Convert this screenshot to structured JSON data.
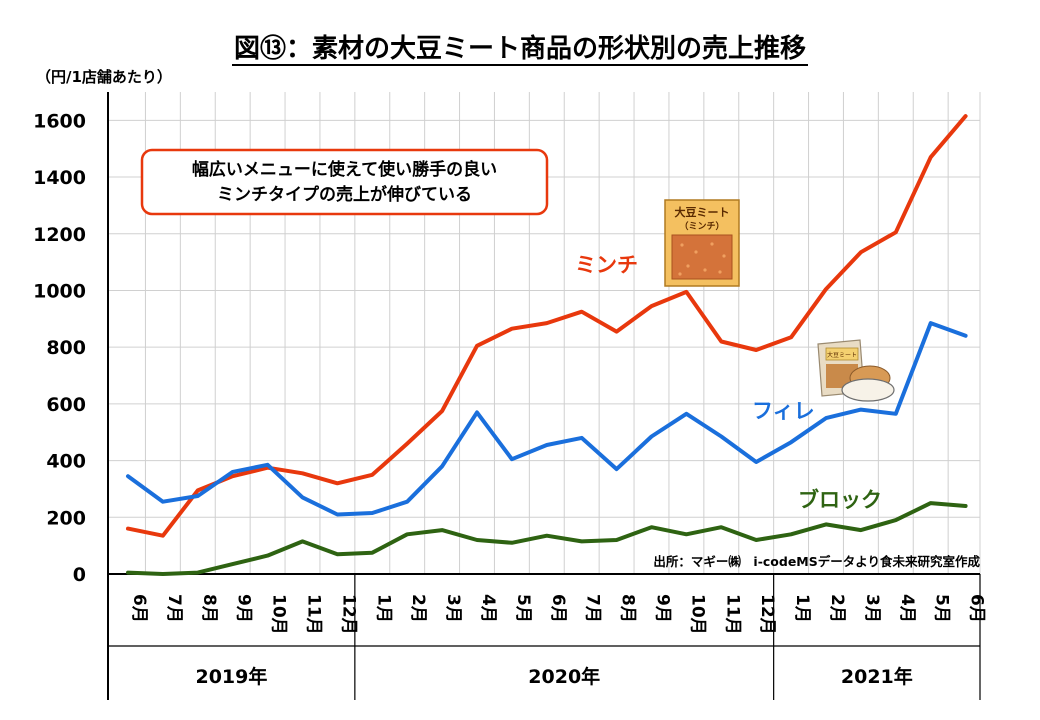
{
  "chart_data": {
    "type": "line",
    "title": "図⑬：素材の大豆ミート商品の形状別の売上推移",
    "ylabel": "（円/1店舗あたり）",
    "ylim": [
      0,
      1700
    ],
    "yticks": [
      "0",
      "200",
      "400",
      "600",
      "800",
      "1000",
      "1200",
      "1400",
      "1600"
    ],
    "months": [
      "6月",
      "7月",
      "8月",
      "9月",
      "10月",
      "11月",
      "12月",
      "1月",
      "2月",
      "3月",
      "4月",
      "5月",
      "6月",
      "7月",
      "8月",
      "9月",
      "10月",
      "11月",
      "12月",
      "1月",
      "2月",
      "3月",
      "4月",
      "5月",
      "6月"
    ],
    "years": [
      {
        "label": "2019年",
        "count": 7
      },
      {
        "label": "2020年",
        "count": 12
      },
      {
        "label": "2021年",
        "count": 6
      }
    ],
    "series": [
      {
        "name": "ミンチ",
        "color": "#e8380d",
        "values": [
          160,
          135,
          295,
          345,
          375,
          355,
          320,
          350,
          460,
          575,
          805,
          865,
          885,
          925,
          855,
          945,
          995,
          820,
          790,
          835,
          1005,
          1135,
          1205,
          1470,
          1615
        ]
      },
      {
        "name": "フィレ",
        "color": "#1a6fdc",
        "values": [
          345,
          255,
          275,
          360,
          385,
          270,
          210,
          215,
          255,
          380,
          570,
          405,
          455,
          480,
          370,
          485,
          565,
          485,
          395,
          465,
          550,
          580,
          565,
          885,
          840
        ]
      },
      {
        "name": "ブロック",
        "color": "#2e6312",
        "values": [
          5,
          0,
          5,
          35,
          65,
          115,
          70,
          75,
          140,
          155,
          120,
          110,
          135,
          115,
          120,
          165,
          140,
          165,
          120,
          140,
          175,
          155,
          190,
          250,
          240
        ]
      }
    ],
    "annotation": [
      "幅広いメニューに使えて使い勝手の良い",
      "ミンチタイプの売上が伸びている"
    ],
    "source": "出所：マギー㈱　i-codeMSデータより食未来研究室作成"
  },
  "package_label": {
    "line1": "大豆ミート",
    "line2": "（ミンチ）"
  },
  "pouch_label": "大豆ミート",
  "colors": {
    "annotation_border": "#e8380d",
    "package_bg": "#f4c060",
    "package_inner": "#d4733a"
  }
}
